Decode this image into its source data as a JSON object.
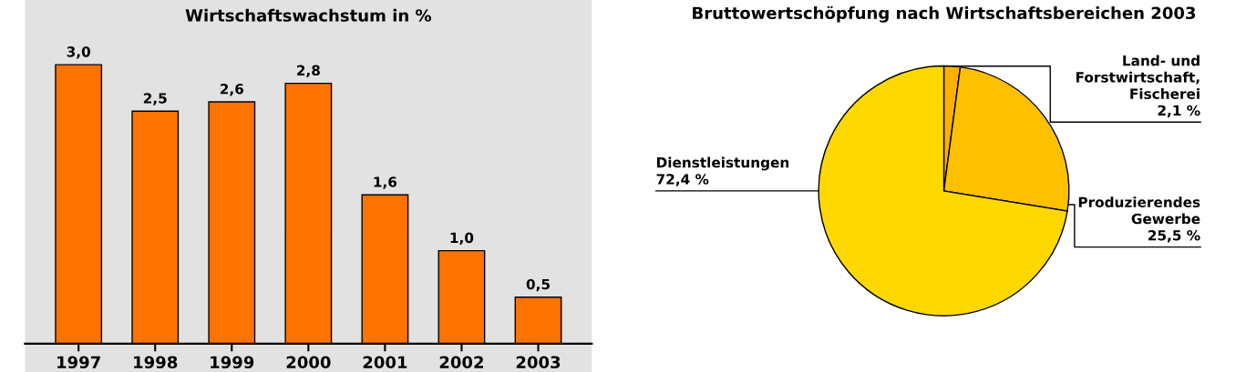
{
  "chart_data": [
    {
      "type": "bar",
      "title": "Wirtschaftswachstum in %",
      "categories": [
        "1997",
        "1998",
        "1999",
        "2000",
        "2001",
        "2002",
        "2003"
      ],
      "values": [
        3.0,
        2.5,
        2.6,
        2.8,
        1.6,
        1.0,
        0.5
      ],
      "value_labels": [
        "3,0",
        "2,5",
        "2,6",
        "2,8",
        "1,6",
        "1,0",
        "0,5"
      ],
      "color": "#ff7300",
      "grid": false
    },
    {
      "type": "pie",
      "title": "Bruttowertschöpfung nach Wirtschaftsbereichen 2003",
      "categories": [
        "Land- und\nForstwirtschaft,\nFischerei",
        "Produzierendes\nGewerbe",
        "Dienstleistungen"
      ],
      "values": [
        2.1,
        25.5,
        72.4
      ],
      "value_labels": [
        "2,1 %",
        "25,5 %",
        "72,4 %"
      ],
      "colors": [
        "#ffb000",
        "#ffc000",
        "#ffd800"
      ]
    }
  ]
}
